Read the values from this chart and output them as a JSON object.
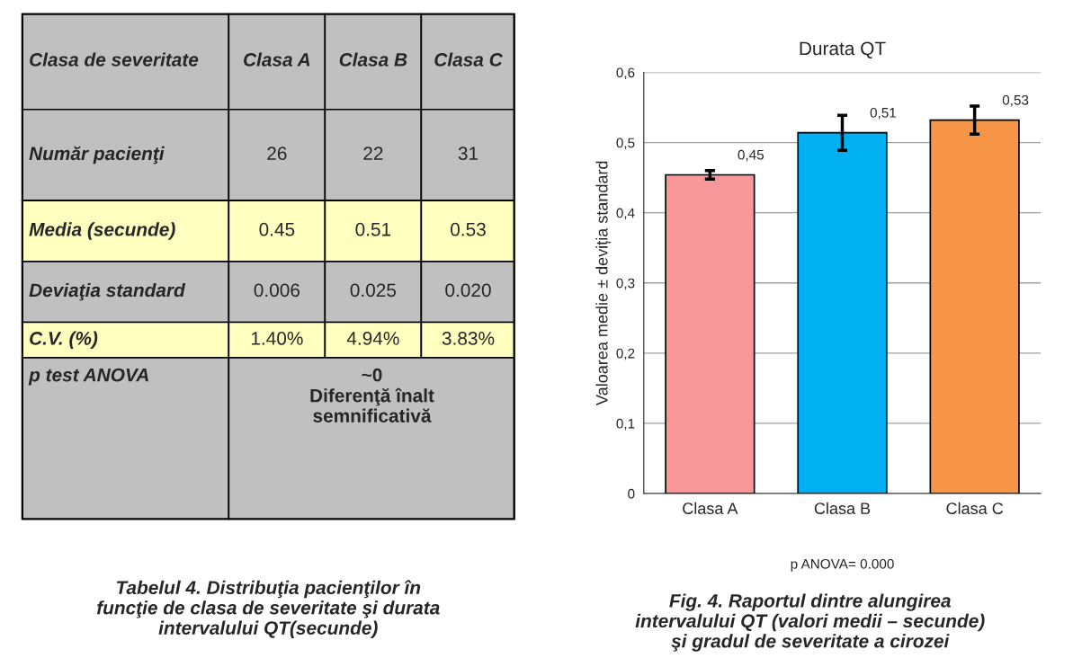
{
  "chart_data": [
    {
      "type": "other",
      "cell_labels": [
        [
          "Clasa de severitate",
          "Clasa A",
          "Clasa B",
          "Clasa C"
        ],
        [
          "Număr pacienţi",
          "26",
          "22",
          "31"
        ],
        [
          "Media (secunde)",
          "0.45",
          "0.51",
          "0.53"
        ],
        [
          "Deviaţia standard",
          "0.006",
          "0.025",
          "0.020"
        ],
        [
          "C.V. (%)",
          "1.40%",
          "4.94%",
          "3.83%"
        ],
        [
          "p test ANOVA",
          "~0\nDiferenţă înalt\nsemnificativă",
          null,
          null
        ]
      ],
      "colors": [
        "#c0c0c0",
        "#c0c0c0",
        "#ffffc0",
        "#c0c0c0",
        "#ffffc0",
        "#c0c0c0"
      ],
      "annotations": [
        "Tabelul 4. Distribuţia pacienţilor în\nfuncţie de clasa de severitate şi durata\nintervalului QT(secunde)"
      ]
    },
    {
      "type": "bar",
      "title": "Durata QT",
      "ylabel": "Valoarea medie ± deviția standard",
      "categories": [
        "Clasa A",
        "Clasa B",
        "Clasa C"
      ],
      "values": [
        0.454,
        0.514,
        0.532
      ],
      "errors": [
        0.006,
        0.025,
        0.02
      ],
      "colors": [
        "#f7979a",
        "#00b0f0",
        "#f79646"
      ],
      "value_labels": [
        "0,45",
        "0,51",
        "0,53"
      ],
      "ylim": [
        0,
        0.6
      ],
      "yticks": [
        0,
        {
          "value": 0.1,
          "label": "0,1"
        },
        {
          "value": 0.2,
          "label": "0,2"
        },
        {
          "value": 0.3,
          "label": "0,3"
        },
        {
          "value": 0.4,
          "label": "0,4"
        },
        {
          "value": 0.5,
          "label": "0,5"
        },
        {
          "value": 0.6,
          "label": "0,6"
        }
      ],
      "grid": "y",
      "annotations": [
        "p ANOVA= 0.000",
        "Fig. 4. Raportul dintre alungirea\nintervalului QT (valori medii – secunde)\nşi gradul de severitate a cirozei"
      ]
    }
  ]
}
